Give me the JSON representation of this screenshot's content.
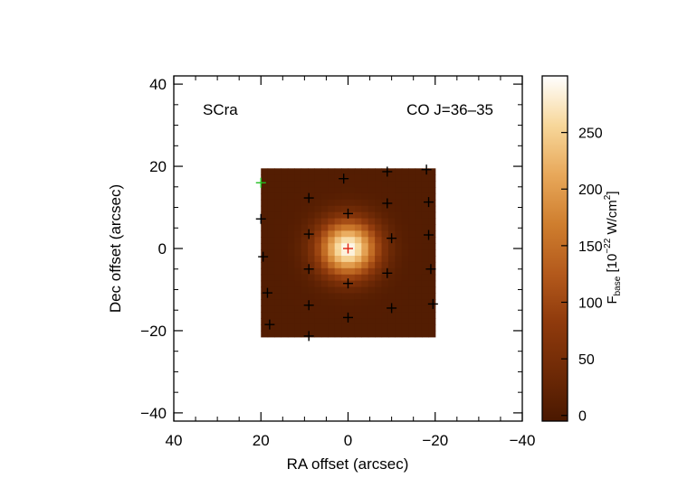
{
  "chart_data": {
    "type": "heatmap",
    "title": "",
    "source_label": "SCra",
    "line_label": "CO J=36–35",
    "xlabel": "RA offset (arcsec)",
    "ylabel": "Dec offset (arcsec)",
    "xlim": [
      40,
      -40
    ],
    "ylim": [
      -42,
      42
    ],
    "x_ticks": [
      40,
      20,
      0,
      -20,
      -40
    ],
    "y_ticks": [
      40,
      20,
      0,
      -20,
      -40
    ],
    "x_tick_labels": [
      "40",
      "20",
      "0",
      "−20",
      "−40"
    ],
    "y_tick_labels": [
      "40",
      "20",
      "0",
      "−20",
      "−40"
    ],
    "map_extent": {
      "ra": [
        20,
        -20
      ],
      "dec": [
        -21.5,
        19.5
      ]
    },
    "peak": {
      "ra": 0,
      "dec": 0,
      "value": 295
    },
    "background_value": 6,
    "colorbar": {
      "label_main": "F",
      "label_sub": "base",
      "label_unit_pre": " [10",
      "label_exp": "−22",
      "label_unit_mid": " W/cm",
      "label_sup2": "2",
      "label_unit_post": "]",
      "range": [
        -5,
        300
      ],
      "ticks": [
        0,
        50,
        100,
        150,
        200,
        250
      ],
      "tick_labels": [
        "0",
        "50",
        "100",
        "150",
        "200",
        "250"
      ],
      "colormap": [
        "#4a1800",
        "#6f2a06",
        "#8f3a0c",
        "#b45a1c",
        "#cf7e2e",
        "#e8a85a",
        "#f7d79a",
        "#ffffff"
      ]
    },
    "spaxels": [
      {
        "ra": 0,
        "dec": 0,
        "color": "#e02010"
      },
      {
        "ra": 20,
        "dec": 16,
        "color": "#22c022"
      },
      {
        "ra": 0,
        "dec": 8.5,
        "color": "#000000"
      },
      {
        "ra": 9,
        "dec": 3.5,
        "color": "#000000"
      },
      {
        "ra": 9,
        "dec": -5,
        "color": "#000000"
      },
      {
        "ra": 0,
        "dec": -8.5,
        "color": "#000000"
      },
      {
        "ra": -9,
        "dec": -6,
        "color": "#000000"
      },
      {
        "ra": -10,
        "dec": 2.5,
        "color": "#000000"
      },
      {
        "ra": 1,
        "dec": 17,
        "color": "#000000"
      },
      {
        "ra": -9,
        "dec": 18.7,
        "color": "#000000"
      },
      {
        "ra": -18,
        "dec": 19.2,
        "color": "#000000"
      },
      {
        "ra": -9,
        "dec": 11,
        "color": "#000000"
      },
      {
        "ra": -18.5,
        "dec": 11.3,
        "color": "#000000"
      },
      {
        "ra": 9,
        "dec": 12.3,
        "color": "#000000"
      },
      {
        "ra": 20,
        "dec": 7.2,
        "color": "#000000"
      },
      {
        "ra": -18.5,
        "dec": 3.3,
        "color": "#000000"
      },
      {
        "ra": 19.5,
        "dec": -2,
        "color": "#000000"
      },
      {
        "ra": -19,
        "dec": -5,
        "color": "#000000"
      },
      {
        "ra": 18.5,
        "dec": -10.8,
        "color": "#000000"
      },
      {
        "ra": -19.5,
        "dec": -13.5,
        "color": "#000000"
      },
      {
        "ra": 9,
        "dec": -13.8,
        "color": "#000000"
      },
      {
        "ra": -10,
        "dec": -14.5,
        "color": "#000000"
      },
      {
        "ra": 18,
        "dec": -18.5,
        "color": "#000000"
      },
      {
        "ra": 0,
        "dec": -16.8,
        "color": "#000000"
      },
      {
        "ra": 9,
        "dec": -21.3,
        "color": "#000000"
      }
    ]
  }
}
